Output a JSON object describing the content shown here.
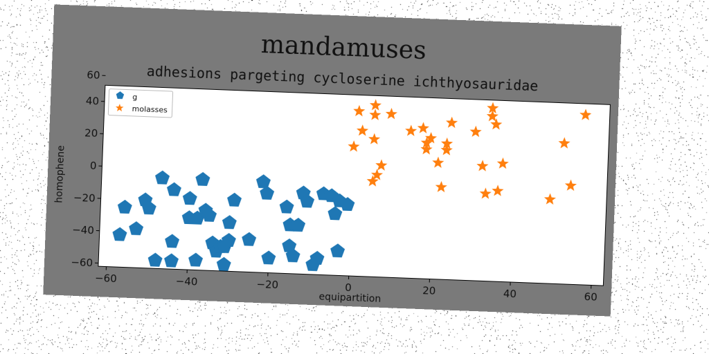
{
  "chart_data": {
    "type": "scatter",
    "title": "mandamuses",
    "subtitle": "adhesions pargeting cycloserine ichthyosauridae",
    "xlabel": "equipartition",
    "ylabel": "homophene",
    "xlim": [
      -62,
      63
    ],
    "ylim": [
      -62,
      50
    ],
    "xticks": [
      -60,
      -40,
      -20,
      0,
      20,
      40,
      60
    ],
    "yticks": [
      -60,
      -40,
      -20,
      0,
      20,
      40,
      60
    ],
    "grid": false,
    "legend_position": "upper-left",
    "series": [
      {
        "name": "g",
        "marker": "pentagon",
        "color": "#1f77b4",
        "points": [
          [
            -56,
            -25
          ],
          [
            -57,
            -42
          ],
          [
            -53,
            -38
          ],
          [
            -51,
            -20
          ],
          [
            -50,
            -25
          ],
          [
            -47,
            -6
          ],
          [
            -44,
            -13
          ],
          [
            -40,
            -18
          ],
          [
            -40,
            -30
          ],
          [
            -38,
            -30
          ],
          [
            -37,
            -6
          ],
          [
            -36,
            -25
          ],
          [
            -35,
            -28
          ],
          [
            -34,
            -45
          ],
          [
            -33,
            -50
          ],
          [
            -32,
            -47
          ],
          [
            -31,
            -47
          ],
          [
            -30,
            -43
          ],
          [
            -30,
            -32
          ],
          [
            -29,
            -18
          ],
          [
            -25,
            -42
          ],
          [
            -22,
            -6
          ],
          [
            -21,
            -13
          ],
          [
            -20,
            -53
          ],
          [
            -16,
            -21
          ],
          [
            -15,
            -32
          ],
          [
            -15,
            -45
          ],
          [
            -14,
            -51
          ],
          [
            -13,
            -32
          ],
          [
            -12,
            -12
          ],
          [
            -11,
            -17
          ],
          [
            -9,
            -56
          ],
          [
            -8,
            -52
          ],
          [
            -7,
            -12
          ],
          [
            -5,
            -13
          ],
          [
            -4,
            -24
          ],
          [
            -3,
            -16
          ],
          [
            -1,
            -18
          ],
          [
            -3,
            -47
          ],
          [
            -48,
            -57
          ],
          [
            -44,
            -57
          ],
          [
            -38,
            -56
          ],
          [
            -31,
            -58
          ],
          [
            -44,
            -45
          ]
        ]
      },
      {
        "name": "molasses",
        "marker": "star",
        "color": "#ff7f0e",
        "points": [
          [
            1,
            40
          ],
          [
            2,
            28
          ],
          [
            0,
            18
          ],
          [
            5,
            44
          ],
          [
            5,
            38
          ],
          [
            5,
            23
          ],
          [
            5,
            -3
          ],
          [
            6,
            1
          ],
          [
            7,
            7
          ],
          [
            9,
            39
          ],
          [
            14,
            29
          ],
          [
            17,
            31
          ],
          [
            18,
            22
          ],
          [
            18,
            18
          ],
          [
            19,
            25
          ],
          [
            21,
            10
          ],
          [
            22,
            -5
          ],
          [
            23,
            22
          ],
          [
            23,
            18
          ],
          [
            24,
            35
          ],
          [
            30,
            30
          ],
          [
            32,
            9
          ],
          [
            33,
            -8
          ],
          [
            34,
            45
          ],
          [
            34,
            40
          ],
          [
            35,
            35
          ],
          [
            36,
            -6
          ],
          [
            37,
            11
          ],
          [
            49,
            -10
          ],
          [
            52,
            25
          ],
          [
            54,
            -1
          ],
          [
            57,
            43
          ]
        ]
      }
    ]
  }
}
